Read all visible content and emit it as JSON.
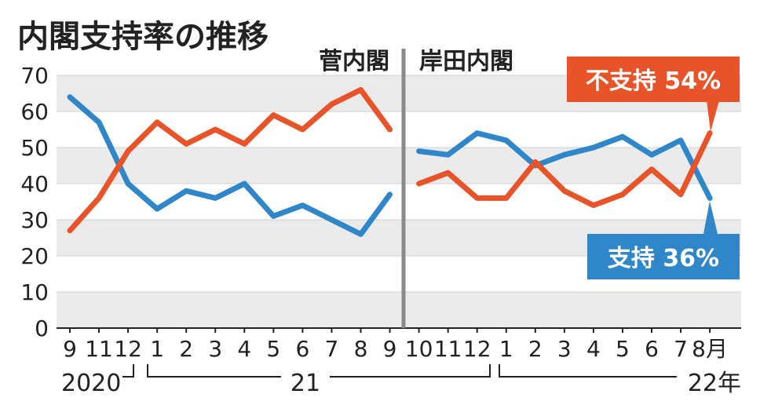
{
  "chart_data": {
    "type": "line",
    "title": "内閣支持率の推移",
    "periods": [
      "菅内閣",
      "岸田内閣"
    ],
    "x_ticks": [
      "9",
      "11",
      "12",
      "1",
      "2",
      "3",
      "4",
      "5",
      "6",
      "7",
      "8",
      "9",
      "10",
      "11",
      "12",
      "1",
      "2",
      "3",
      "4",
      "5",
      "6",
      "7",
      "8月"
    ],
    "year_labels": [
      "2020",
      "21",
      "22年"
    ],
    "y_ticks": [
      "0",
      "10",
      "20",
      "30",
      "40",
      "50",
      "60",
      "70"
    ],
    "ylim": [
      0,
      70
    ],
    "series": [
      {
        "name": "不支持",
        "color": "#e8542a",
        "segments": [
          [
            27,
            36,
            49,
            57,
            51,
            55,
            51,
            59,
            55,
            62,
            66,
            55
          ],
          [
            40,
            43,
            36,
            36,
            46,
            38,
            34,
            37,
            44,
            37,
            54
          ]
        ]
      },
      {
        "name": "支持",
        "color": "#2f86c8",
        "segments": [
          [
            64,
            57,
            40,
            33,
            38,
            36,
            40,
            31,
            34,
            30,
            26,
            37
          ],
          [
            49,
            48,
            54,
            52,
            45,
            48,
            50,
            53,
            48,
            52,
            36
          ]
        ]
      }
    ],
    "callouts": [
      {
        "series": "不支持",
        "label": "不支持 54%"
      },
      {
        "series": "支持",
        "label": "支持 36%"
      }
    ],
    "grid": true
  }
}
